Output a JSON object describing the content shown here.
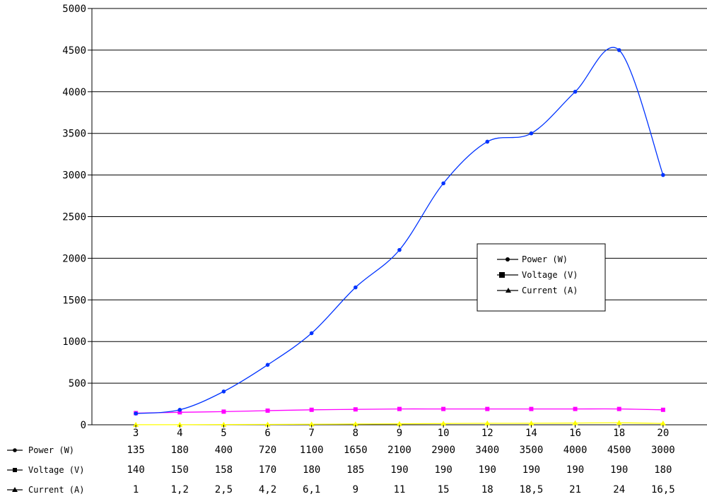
{
  "chart_data": {
    "type": "line",
    "categories": [
      "3",
      "4",
      "5",
      "6",
      "7",
      "8",
      "9",
      "10",
      "12",
      "14",
      "16",
      "18",
      "20"
    ],
    "ylim": [
      0,
      5000
    ],
    "yticks": [
      0,
      500,
      1000,
      1500,
      2000,
      2500,
      3000,
      3500,
      4000,
      4500,
      5000
    ],
    "grid": true,
    "legend_position": "center-right",
    "series": [
      {
        "name": "Power (W)",
        "color": "#0033ff",
        "values": [
          135,
          180,
          400,
          720,
          1100,
          1650,
          2100,
          2900,
          3400,
          3500,
          4000,
          4500,
          3000
        ],
        "table_values": [
          "135",
          "180",
          "400",
          "720",
          "1100",
          "1650",
          "2100",
          "2900",
          "3400",
          "3500",
          "4000",
          "4500",
          "3000"
        ]
      },
      {
        "name": "Voltage (V)",
        "color": "#ff00ff",
        "values": [
          140,
          150,
          158,
          170,
          180,
          185,
          190,
          190,
          190,
          190,
          190,
          190,
          180
        ],
        "table_values": [
          "140",
          "150",
          "158",
          "170",
          "180",
          "185",
          "190",
          "190",
          "190",
          "190",
          "190",
          "190",
          "180"
        ]
      },
      {
        "name": "Current (A)",
        "color": "#ffff00",
        "values": [
          1,
          1.2,
          2.5,
          4.2,
          6.1,
          9,
          11,
          15,
          18,
          18.5,
          21,
          24,
          16.5
        ],
        "table_values": [
          "1",
          "1,2",
          "2,5",
          "4,2",
          "6,1",
          "9",
          "11",
          "15",
          "18",
          "18,5",
          "21",
          "24",
          "16,5"
        ]
      }
    ]
  }
}
